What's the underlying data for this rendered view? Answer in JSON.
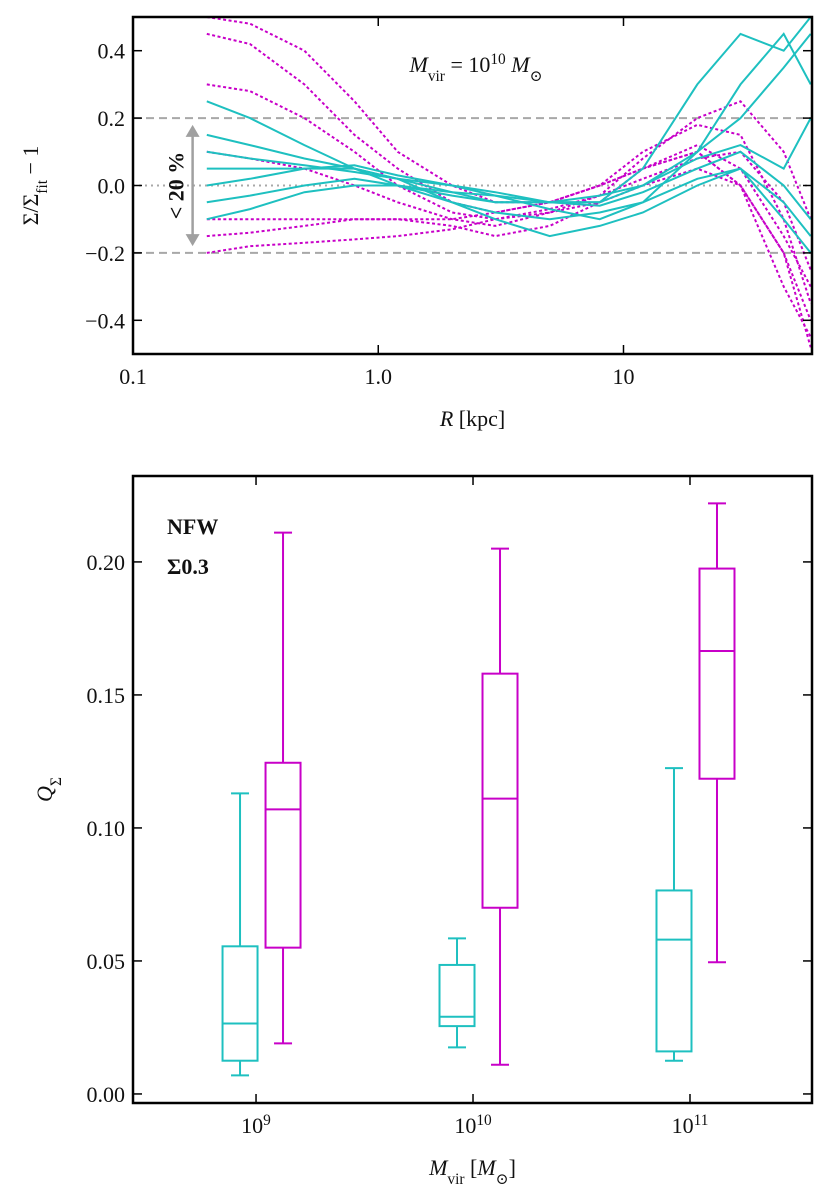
{
  "chart_data": [
    {
      "type": "line",
      "xlabel": [
        {
          "text": "R",
          "style": "italic"
        },
        {
          "text": " [kpc]"
        }
      ],
      "ylabel": [
        {
          "text": "Σ/Σ"
        },
        {
          "text": "fit",
          "style": "sub"
        },
        {
          "text": " − 1"
        }
      ],
      "annotation": [
        {
          "text": "M",
          "style": "italic"
        },
        {
          "text": "vir",
          "style": "sub"
        },
        {
          "text": " = 10"
        },
        {
          "text": "10",
          "style": "sup"
        },
        {
          "text": " M",
          "style": "italic"
        },
        {
          "text": "⊙",
          "style": "sub"
        }
      ],
      "xscale": "log",
      "xlim": [
        0.1,
        58.7
      ],
      "ylim": [
        -0.5,
        0.5
      ],
      "xticks": [
        0.1,
        {
          "value": 1,
          "label": "1.0"
        },
        10
      ],
      "yticks": [
        0.4,
        0.2,
        {
          "value": 0,
          "label": "0.0"
        },
        {
          "value": -0.2,
          "label": "−0.2"
        },
        {
          "value": -0.4,
          "label": "−0.4"
        }
      ],
      "hlines": [
        {
          "value": 0.2,
          "style": "dashed",
          "color": "#a8a8a8"
        },
        {
          "value": -0.2,
          "style": "dashed",
          "color": "#a8a8a8"
        },
        {
          "value": 0,
          "style": "dotted",
          "color": "#a8a8a8"
        }
      ],
      "arrow": {
        "x": 0.175,
        "from": -0.18,
        "to": 0.18,
        "label": "< 20 %",
        "color": "#a0a0a0"
      },
      "x": [
        0.2,
        0.3,
        0.5,
        0.8,
        1.2,
        2,
        3,
        5,
        8,
        12,
        20,
        30,
        45,
        58
      ],
      "series": [
        {
          "color": "#c800c8",
          "style": "dotted",
          "values": [
            0.5,
            0.48,
            0.4,
            0.25,
            0.1,
            0.0,
            -0.05,
            -0.05,
            0.0,
            0.05,
            0.1,
            0.0,
            -0.3,
            -0.45
          ]
        },
        {
          "color": "#c800c8",
          "style": "dotted",
          "values": [
            0.45,
            0.42,
            0.3,
            0.15,
            0.05,
            -0.05,
            -0.08,
            -0.05,
            0.0,
            0.1,
            0.18,
            0.15,
            -0.1,
            -0.35
          ]
        },
        {
          "color": "#c800c8",
          "style": "dotted",
          "values": [
            0.3,
            0.28,
            0.2,
            0.1,
            0.0,
            -0.08,
            -0.1,
            -0.08,
            -0.05,
            0.05,
            0.1,
            0.0,
            -0.2,
            -0.4
          ]
        },
        {
          "color": "#c800c8",
          "style": "dotted",
          "values": [
            -0.15,
            -0.14,
            -0.12,
            -0.1,
            -0.1,
            -0.1,
            -0.08,
            -0.05,
            0.0,
            0.05,
            0.12,
            0.05,
            -0.15,
            -0.3
          ]
        },
        {
          "color": "#c800c8",
          "style": "dotted",
          "values": [
            -0.2,
            -0.18,
            -0.17,
            -0.16,
            -0.15,
            -0.13,
            -0.1,
            -0.07,
            -0.03,
            0.02,
            0.08,
            0.1,
            -0.05,
            -0.25
          ]
        },
        {
          "color": "#c800c8",
          "style": "dotted",
          "values": [
            -0.1,
            -0.1,
            -0.1,
            -0.1,
            -0.1,
            -0.12,
            -0.15,
            -0.12,
            -0.05,
            0.0,
            0.05,
            0.0,
            -0.2,
            -0.48
          ]
        },
        {
          "color": "#c800c8",
          "style": "dotted",
          "values": [
            0.1,
            0.08,
            0.05,
            0.0,
            -0.05,
            -0.1,
            -0.12,
            -0.08,
            -0.03,
            0.08,
            0.2,
            0.25,
            0.1,
            -0.1
          ]
        },
        {
          "color": "#1ec0c0",
          "style": "solid",
          "values": [
            0.25,
            0.2,
            0.12,
            0.05,
            0.0,
            -0.02,
            -0.03,
            -0.05,
            -0.05,
            0.05,
            0.3,
            0.45,
            0.4,
            0.5
          ]
        },
        {
          "color": "#1ec0c0",
          "style": "solid",
          "values": [
            0.15,
            0.12,
            0.08,
            0.05,
            0.02,
            -0.02,
            -0.05,
            -0.05,
            -0.03,
            0.0,
            0.1,
            0.2,
            0.35,
            0.45
          ]
        },
        {
          "color": "#1ec0c0",
          "style": "solid",
          "values": [
            0.05,
            0.05,
            0.05,
            0.05,
            0.02,
            0.0,
            -0.02,
            -0.05,
            -0.06,
            -0.02,
            0.05,
            0.1,
            0.0,
            -0.1
          ]
        },
        {
          "color": "#1ec0c0",
          "style": "solid",
          "values": [
            0.0,
            0.02,
            0.05,
            0.06,
            0.03,
            0.0,
            -0.03,
            -0.07,
            -0.1,
            -0.05,
            0.02,
            0.05,
            -0.05,
            -0.15
          ]
        },
        {
          "color": "#1ec0c0",
          "style": "solid",
          "values": [
            -0.05,
            -0.03,
            0.0,
            0.02,
            0.0,
            -0.05,
            -0.08,
            -0.1,
            -0.08,
            -0.05,
            0.1,
            0.3,
            0.45,
            0.3
          ]
        },
        {
          "color": "#1ec0c0",
          "style": "solid",
          "values": [
            -0.1,
            -0.07,
            -0.02,
            0.0,
            0.0,
            -0.03,
            -0.05,
            -0.05,
            -0.05,
            0.0,
            0.08,
            0.12,
            0.05,
            0.2
          ]
        },
        {
          "color": "#1ec0c0",
          "style": "solid",
          "values": [
            0.1,
            0.08,
            0.06,
            0.04,
            0.02,
            -0.05,
            -0.1,
            -0.15,
            -0.12,
            -0.08,
            0.0,
            0.05,
            -0.1,
            -0.2
          ]
        }
      ]
    },
    {
      "type": "box",
      "xlabel": [
        {
          "text": "M",
          "style": "italic"
        },
        {
          "text": "vir",
          "style": "sub"
        },
        {
          "text": " ["
        },
        {
          "text": "M",
          "style": "italic"
        },
        {
          "text": "⊙",
          "style": "sub"
        },
        {
          "text": "]"
        }
      ],
      "ylabel": [
        {
          "text": "Q",
          "style": "italic"
        },
        {
          "text": "Σ",
          "style": "sub"
        }
      ],
      "xscale": "log",
      "xlim": [
        271000000,
        365000000000
      ],
      "ylim": [
        -0.0034,
        0.2323
      ],
      "x": [
        1000000000,
        10000000000,
        100000000000
      ],
      "xticks": [
        {
          "value": 1000000000,
          "label": "10",
          "exponent": "9"
        },
        {
          "value": 10000000000,
          "label": "10",
          "exponent": "10"
        },
        {
          "value": 100000000000,
          "label": "10",
          "exponent": "11"
        }
      ],
      "yticks": [
        {
          "value": 0,
          "label": "0.00"
        },
        0.05,
        {
          "value": 0.1,
          "label": "0.10"
        },
        0.15,
        {
          "value": 0.2,
          "label": "0.20"
        }
      ],
      "series": [
        {
          "name": "NFW",
          "color": "#c800c8",
          "whislo": [
            0.019,
            0.011,
            0.0495
          ],
          "q1": [
            0.055,
            0.07,
            0.1185
          ],
          "median": [
            0.107,
            0.111,
            0.1665
          ],
          "q3": [
            0.1245,
            0.158,
            0.1975
          ],
          "whishi": [
            0.211,
            0.205,
            0.222
          ]
        },
        {
          "name": "Σ0.3",
          "color": "#1ec0c0",
          "whislo": [
            0.007,
            0.0175,
            0.0125
          ],
          "q1": [
            0.0125,
            0.0255,
            0.016
          ],
          "median": [
            0.0265,
            0.029,
            0.058
          ],
          "q3": [
            0.0555,
            0.0485,
            0.0765
          ],
          "whishi": [
            0.113,
            0.0585,
            0.1225
          ]
        }
      ]
    }
  ]
}
